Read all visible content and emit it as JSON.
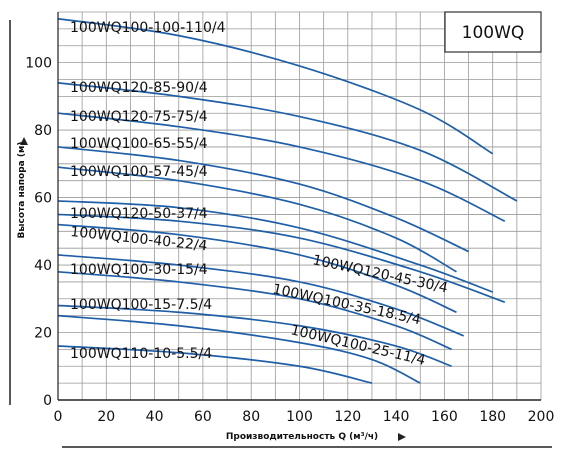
{
  "chart_data": {
    "type": "line",
    "title": "100WQ",
    "xlabel": "Производительность Q (м³/ч)",
    "ylabel": "Высота напора (м)",
    "xlim": [
      0,
      200
    ],
    "ylim": [
      0,
      115
    ],
    "x_ticks": [
      "0",
      "20",
      "40",
      "60",
      "80",
      "100",
      "120",
      "140",
      "160",
      "180",
      "200"
    ],
    "y_ticks": [
      "0",
      "20",
      "40",
      "60",
      "80",
      "100"
    ],
    "grid": true,
    "line_color": "#1f5fa8",
    "series": [
      {
        "name": "100WQ100-100-110/4",
        "x": [
          0,
          50,
          100,
          150,
          180
        ],
        "y": [
          113,
          108,
          99,
          86,
          73
        ]
      },
      {
        "name": "100WQ120-85-90/4",
        "x": [
          0,
          50,
          100,
          150,
          190
        ],
        "y": [
          94,
          90,
          84,
          74,
          59
        ]
      },
      {
        "name": "100WQ120-75-75/4",
        "x": [
          0,
          50,
          100,
          150,
          185
        ],
        "y": [
          85,
          81,
          75,
          65,
          53
        ]
      },
      {
        "name": "100WQ100-65-55/4",
        "x": [
          0,
          50,
          100,
          140,
          170
        ],
        "y": [
          75,
          71,
          64,
          54,
          44
        ]
      },
      {
        "name": "100WQ100-57-45/4",
        "x": [
          0,
          50,
          100,
          140,
          165
        ],
        "y": [
          69,
          65,
          58,
          48,
          38
        ]
      },
      {
        "name": "100WQ120-50-37/4",
        "x": [
          0,
          50,
          100,
          150,
          180
        ],
        "y": [
          59,
          57,
          51,
          40,
          32
        ]
      },
      {
        "name": "100WQ120-45-30/4",
        "x": [
          0,
          50,
          100,
          150,
          185
        ],
        "y": [
          55,
          53,
          48,
          38,
          29
        ]
      },
      {
        "name": "100WQ100-40-22/4",
        "x": [
          0,
          50,
          100,
          140,
          165
        ],
        "y": [
          52,
          49,
          43,
          34,
          26
        ]
      },
      {
        "name": "100WQ100-35-18.5/4",
        "x": [
          0,
          50,
          100,
          140,
          168
        ],
        "y": [
          43,
          40,
          35,
          27,
          19
        ]
      },
      {
        "name": "100WQ100-30-15/4",
        "x": [
          0,
          50,
          100,
          140,
          163
        ],
        "y": [
          38,
          35,
          30,
          22,
          15
        ]
      },
      {
        "name": "100WQ100-25-11/4",
        "x": [
          0,
          50,
          100,
          140,
          163
        ],
        "y": [
          28,
          26,
          22,
          16,
          10
        ]
      },
      {
        "name": "100WQ100-15-7.5/4",
        "x": [
          0,
          50,
          100,
          130,
          150
        ],
        "y": [
          25,
          22,
          17,
          12,
          5
        ]
      },
      {
        "name": "100WQ110-10-5.5/4",
        "x": [
          0,
          50,
          100,
          130
        ],
        "y": [
          16,
          14,
          10,
          5
        ]
      }
    ]
  }
}
